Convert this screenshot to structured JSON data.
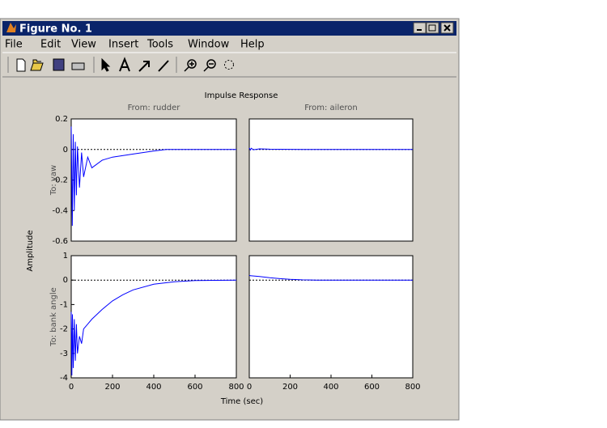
{
  "window": {
    "title": "Figure No. 1",
    "menu": [
      "File",
      "Edit",
      "View",
      "Insert",
      "Tools",
      "Window",
      "Help"
    ]
  },
  "figure": {
    "title": "Impulse Response",
    "xlabel": "Time (sec)",
    "ylabel": "Amplitude"
  },
  "chart_data": [
    {
      "type": "line",
      "title": "From: rudder",
      "ylabel": "To: yaw",
      "color": "#0000ff",
      "xlim": [
        0,
        800
      ],
      "ylim": [
        -0.6,
        0.2
      ],
      "yticks": [
        -0.6,
        -0.4,
        -0.2,
        0,
        0.2
      ],
      "x": [
        0,
        5,
        10,
        15,
        20,
        25,
        30,
        40,
        50,
        60,
        80,
        100,
        150,
        200,
        300,
        400,
        460,
        600,
        800
      ],
      "values": [
        0.15,
        -0.5,
        0.1,
        -0.4,
        0.05,
        -0.3,
        0.02,
        -0.25,
        -0.02,
        -0.18,
        -0.05,
        -0.12,
        -0.07,
        -0.05,
        -0.03,
        -0.01,
        0,
        0,
        0
      ]
    },
    {
      "type": "line",
      "title": "From: aileron",
      "color": "#0000ff",
      "xlim": [
        0,
        800
      ],
      "ylim": [
        -0.6,
        0.2
      ],
      "x": [
        0,
        5,
        10,
        20,
        50,
        100,
        200,
        270,
        800
      ],
      "values": [
        0.01,
        -0.003,
        0.008,
        -0.002,
        0.004,
        0.002,
        0.001,
        0,
        0
      ]
    },
    {
      "type": "line",
      "ylabel": "To: bank angle",
      "color": "#0000ff",
      "xlim": [
        0,
        800
      ],
      "ylim": [
        -4,
        1
      ],
      "yticks": [
        -4,
        -3,
        -2,
        -1,
        0,
        1
      ],
      "xticks": [
        0,
        200,
        400,
        600,
        800
      ],
      "x": [
        0,
        3,
        6,
        10,
        15,
        20,
        25,
        30,
        40,
        50,
        60,
        80,
        100,
        150,
        200,
        250,
        300,
        400,
        500,
        600,
        800
      ],
      "values": [
        -1.3,
        -3.9,
        -1.4,
        -3.6,
        -1.6,
        -3.3,
        -1.8,
        -3.0,
        -2.3,
        -2.6,
        -2.0,
        -1.8,
        -1.6,
        -1.2,
        -0.85,
        -0.6,
        -0.4,
        -0.17,
        -0.07,
        -0.02,
        0
      ]
    },
    {
      "type": "line",
      "color": "#0000ff",
      "xlim": [
        0,
        800
      ],
      "ylim": [
        -4,
        1
      ],
      "xticks": [
        0,
        200,
        400,
        600,
        800
      ],
      "x": [
        0,
        5,
        50,
        100,
        150,
        200,
        260,
        330,
        800
      ],
      "values": [
        0.2,
        0.18,
        0.15,
        0.1,
        0.06,
        0.03,
        0.01,
        0,
        0
      ]
    }
  ]
}
